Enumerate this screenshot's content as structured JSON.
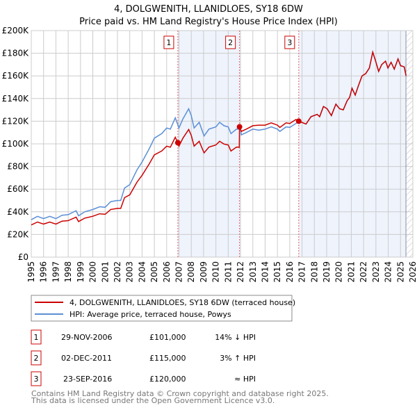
{
  "chart_data": {
    "type": "line",
    "title": "4, DOLGWENITH, LLANIDLOES, SY18 6DW",
    "subtitle": "Price paid vs. HM Land Registry's House Price Index (HPI)",
    "xlabel": "",
    "ylabel": "",
    "xlim": [
      1995,
      2026
    ],
    "ylim": [
      0,
      200000
    ],
    "grid": true,
    "x_ticks": [
      "1995",
      "1996",
      "1997",
      "1998",
      "1999",
      "2000",
      "2001",
      "2002",
      "2003",
      "2004",
      "2005",
      "2006",
      "2007",
      "2008",
      "2009",
      "2010",
      "2011",
      "2012",
      "2013",
      "2014",
      "2015",
      "2016",
      "2017",
      "2018",
      "2019",
      "2020",
      "2021",
      "2022",
      "2023",
      "2024",
      "2025",
      "2026"
    ],
    "y_ticks": [
      {
        "value": 0,
        "label": "£0"
      },
      {
        "value": 20000,
        "label": "£20K"
      },
      {
        "value": 40000,
        "label": "£40K"
      },
      {
        "value": 60000,
        "label": "£60K"
      },
      {
        "value": 80000,
        "label": "£80K"
      },
      {
        "value": 100000,
        "label": "£100K"
      },
      {
        "value": 120000,
        "label": "£120K"
      },
      {
        "value": 140000,
        "label": "£140K"
      },
      {
        "value": 160000,
        "label": "£160K"
      },
      {
        "value": 180000,
        "label": "£180K"
      },
      {
        "value": 200000,
        "label": "£200K"
      }
    ],
    "data_end_year": 2025.44,
    "series": [
      {
        "name": "4, DOLGWENITH, LLANIDLOES, SY18 6DW (terraced house)",
        "color": "#cc0000",
        "points": [
          [
            1995,
            28400
          ],
          [
            1995.5,
            31000
          ],
          [
            1996,
            29200
          ],
          [
            1996.5,
            31000
          ],
          [
            1997,
            29200
          ],
          [
            1997.5,
            31800
          ],
          [
            1998,
            32200
          ],
          [
            1998.64,
            35300
          ],
          [
            1998.84,
            31400
          ],
          [
            1999.34,
            34400
          ],
          [
            2000,
            36100
          ],
          [
            2000.56,
            38300
          ],
          [
            2001,
            37800
          ],
          [
            2001.46,
            42100
          ],
          [
            2002,
            43000
          ],
          [
            2002.27,
            43000
          ],
          [
            2002.58,
            52500
          ],
          [
            2003,
            55000
          ],
          [
            2003.59,
            66200
          ],
          [
            2004,
            72200
          ],
          [
            2004.6,
            82600
          ],
          [
            2005,
            90300
          ],
          [
            2005.6,
            93700
          ],
          [
            2006,
            98000
          ],
          [
            2006.3,
            97000
          ],
          [
            2006.7,
            105800
          ],
          [
            2006.91,
            101000
          ],
          [
            2007,
            98000
          ],
          [
            2007.32,
            105000
          ],
          [
            2007.79,
            112700
          ],
          [
            2008,
            107500
          ],
          [
            2008.23,
            98000
          ],
          [
            2008.64,
            102300
          ],
          [
            2009.04,
            92000
          ],
          [
            2009.44,
            97200
          ],
          [
            2010,
            99000
          ],
          [
            2010.3,
            102300
          ],
          [
            2010.66,
            99800
          ],
          [
            2011,
            99000
          ],
          [
            2011.22,
            93700
          ],
          [
            2011.67,
            97200
          ],
          [
            2011.9,
            97000
          ],
          [
            2011.92,
            115000
          ],
          [
            2012.07,
            111000
          ],
          [
            2012.47,
            113000
          ],
          [
            2013,
            116000
          ],
          [
            2013.48,
            116500
          ],
          [
            2014,
            116500
          ],
          [
            2014.5,
            118500
          ],
          [
            2015,
            116500
          ],
          [
            2015.2,
            114500
          ],
          [
            2015.7,
            118500
          ],
          [
            2016,
            118000
          ],
          [
            2016.5,
            121500
          ],
          [
            2016.73,
            120000
          ],
          [
            2017.32,
            117500
          ],
          [
            2017.73,
            124000
          ],
          [
            2018.23,
            126000
          ],
          [
            2018.43,
            124000
          ],
          [
            2018.74,
            133000
          ],
          [
            2019.04,
            131000
          ],
          [
            2019.38,
            125000
          ],
          [
            2019.75,
            135000
          ],
          [
            2020.05,
            131000
          ],
          [
            2020.35,
            130000
          ],
          [
            2020.66,
            138000
          ],
          [
            2020.86,
            141000
          ],
          [
            2021.06,
            149000
          ],
          [
            2021.32,
            143000
          ],
          [
            2021.57,
            151000
          ],
          [
            2021.87,
            160000
          ],
          [
            2022.17,
            162000
          ],
          [
            2022.47,
            167000
          ],
          [
            2022.74,
            181000
          ],
          [
            2022.98,
            173000
          ],
          [
            2023.22,
            164000
          ],
          [
            2023.47,
            170000
          ],
          [
            2023.78,
            173000
          ],
          [
            2023.98,
            167000
          ],
          [
            2024.23,
            172000
          ],
          [
            2024.49,
            166000
          ],
          [
            2024.8,
            175000
          ],
          [
            2025,
            169000
          ],
          [
            2025.3,
            168000
          ],
          [
            2025.45,
            160000
          ]
        ]
      },
      {
        "name": "HPI: Average price, terraced house, Powys",
        "color": "#5b8fd6",
        "points": [
          [
            1995,
            33000
          ],
          [
            1995.5,
            36000
          ],
          [
            1996,
            34000
          ],
          [
            1996.5,
            36000
          ],
          [
            1997,
            34000
          ],
          [
            1997.5,
            37000
          ],
          [
            1998,
            37500
          ],
          [
            1998.64,
            41000
          ],
          [
            1998.84,
            36500
          ],
          [
            1999.34,
            40000
          ],
          [
            2000,
            42000
          ],
          [
            2000.56,
            44500
          ],
          [
            2001,
            44000
          ],
          [
            2001.46,
            49000
          ],
          [
            2002,
            50000
          ],
          [
            2002.27,
            50000
          ],
          [
            2002.58,
            61000
          ],
          [
            2003,
            64000
          ],
          [
            2003.59,
            77000
          ],
          [
            2004,
            84000
          ],
          [
            2004.6,
            96000
          ],
          [
            2005,
            105000
          ],
          [
            2005.6,
            109000
          ],
          [
            2006,
            114000
          ],
          [
            2006.3,
            113000
          ],
          [
            2006.7,
            123000
          ],
          [
            2007,
            114000
          ],
          [
            2007.32,
            122000
          ],
          [
            2007.79,
            131000
          ],
          [
            2008,
            125000
          ],
          [
            2008.23,
            114000
          ],
          [
            2008.64,
            119000
          ],
          [
            2009.04,
            107000
          ],
          [
            2009.44,
            113000
          ],
          [
            2010,
            115000
          ],
          [
            2010.3,
            119000
          ],
          [
            2010.66,
            116000
          ],
          [
            2011,
            115000
          ],
          [
            2011.22,
            109000
          ],
          [
            2011.67,
            113000
          ],
          [
            2012,
            113000
          ],
          [
            2012.07,
            108000
          ],
          [
            2012.47,
            110000
          ],
          [
            2013,
            113000
          ],
          [
            2013.48,
            112000
          ],
          [
            2014,
            113000
          ],
          [
            2014.5,
            115000
          ],
          [
            2015,
            113000
          ],
          [
            2015.2,
            111000
          ],
          [
            2015.7,
            115000
          ],
          [
            2016,
            114500
          ],
          [
            2016.5,
            118000
          ],
          [
            2016.73,
            120000
          ],
          [
            2017.32,
            117500
          ],
          [
            2017.73,
            124000
          ],
          [
            2018.23,
            126000
          ],
          [
            2018.43,
            124000
          ],
          [
            2018.74,
            133000
          ],
          [
            2019.04,
            131000
          ],
          [
            2019.38,
            125000
          ],
          [
            2019.75,
            135000
          ],
          [
            2020.05,
            131000
          ],
          [
            2020.35,
            130000
          ],
          [
            2020.66,
            138000
          ],
          [
            2020.86,
            141000
          ],
          [
            2021.06,
            149000
          ],
          [
            2021.32,
            143000
          ],
          [
            2021.57,
            151000
          ],
          [
            2021.87,
            160000
          ],
          [
            2022.17,
            162000
          ],
          [
            2022.47,
            167000
          ],
          [
            2022.74,
            181000
          ],
          [
            2022.98,
            173000
          ],
          [
            2023.22,
            164000
          ],
          [
            2023.47,
            170000
          ],
          [
            2023.78,
            173000
          ],
          [
            2023.98,
            167000
          ],
          [
            2024.23,
            172000
          ],
          [
            2024.49,
            166000
          ],
          [
            2024.8,
            175000
          ],
          [
            2025,
            169000
          ],
          [
            2025.3,
            168000
          ],
          [
            2025.45,
            160000
          ]
        ]
      }
    ],
    "sales": [
      {
        "marker": "1",
        "year": 2006.91,
        "price": 101000,
        "date": "29-NOV-2006",
        "price_label": "£101,000",
        "hpi_diff": "14% ↓ HPI"
      },
      {
        "marker": "2",
        "year": 2011.92,
        "price": 115000,
        "date": "02-DEC-2011",
        "price_label": "£115,000",
        "hpi_diff": "3% ↑ HPI"
      },
      {
        "marker": "3",
        "year": 2016.73,
        "price": 120000,
        "date": "23-SEP-2016",
        "price_label": "£120,000",
        "hpi_diff": "≈ HPI"
      }
    ],
    "legend_placement": "below"
  },
  "footer": {
    "line1": "Contains HM Land Registry data © Crown copyright and database right 2025.",
    "line2": "This data is licensed under the Open Government Licence v3.0."
  }
}
